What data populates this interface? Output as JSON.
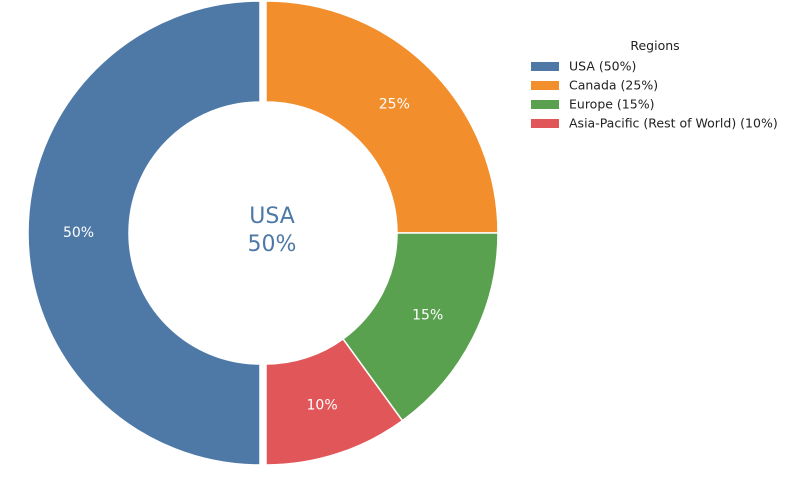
{
  "chart_data": {
    "type": "pie",
    "donut": true,
    "title": "",
    "categories": [
      "USA",
      "Canada",
      "Europe",
      "Asia-Pacific (Rest of World)"
    ],
    "values": [
      50,
      25,
      15,
      10
    ],
    "slice_labels": [
      "50%",
      "25%",
      "15%",
      "10%"
    ],
    "colors": [
      "#4e79a7",
      "#f28e2b",
      "#59a14f",
      "#e15759"
    ],
    "exploded_slice": "USA",
    "center_label": {
      "line1": "USA",
      "line2": "50%",
      "color": "#4e79a7"
    },
    "legend": {
      "title": "Regions",
      "placement": "top-right",
      "entries": [
        "USA (50%)",
        "Canada (25%)",
        "Europe (15%)",
        "Asia-Pacific (Rest of World) (10%)"
      ]
    }
  }
}
